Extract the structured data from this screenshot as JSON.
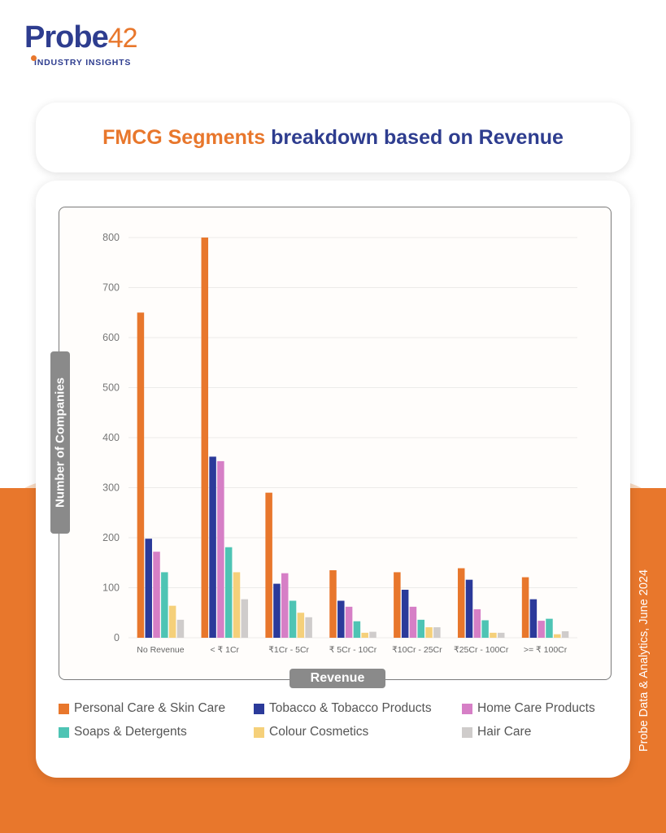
{
  "logo": {
    "name_main": "robe",
    "name_p": "P",
    "name_num": "42",
    "tagline": "INDUSTRY INSIGHTS"
  },
  "title": {
    "part1": "FMCG Segments",
    "part2": "breakdown based on Revenue"
  },
  "side_note": "Probe Data & Analytics, June 2024",
  "chart_data": {
    "type": "bar",
    "title": "FMCG Segments breakdown based on Revenue",
    "xlabel": "Revenue",
    "ylabel": "Number of Companies",
    "ylim": [
      0,
      800
    ],
    "yticks": [
      0,
      100,
      200,
      300,
      400,
      500,
      600,
      700,
      800
    ],
    "grid": true,
    "legend_position": "bottom",
    "categories": [
      "No Revenue",
      "< ₹ 1Cr",
      "₹1Cr - 5Cr",
      "₹ 5Cr - 10Cr",
      "₹10Cr - 25Cr",
      "₹25Cr - 100Cr",
      ">= ₹ 100Cr"
    ],
    "series": [
      {
        "name": "Personal Care & Skin Care",
        "color": "#e8772c",
        "values": [
          650,
          800,
          290,
          135,
          131,
          139,
          121
        ]
      },
      {
        "name": "Tobacco & Tobacco Products",
        "color": "#2b3a9a",
        "values": [
          198,
          362,
          108,
          74,
          96,
          116,
          77
        ]
      },
      {
        "name": "Home Care Products",
        "color": "#d67fc6",
        "values": [
          172,
          353,
          129,
          62,
          62,
          57,
          34
        ]
      },
      {
        "name": "Soaps & Detergents",
        "color": "#4ec4b4",
        "values": [
          131,
          181,
          74,
          33,
          36,
          35,
          38
        ]
      },
      {
        "name": "Colour Cosmetics",
        "color": "#f5d07a",
        "values": [
          64,
          131,
          50,
          10,
          21,
          10,
          7
        ]
      },
      {
        "name": "Hair Care",
        "color": "#cfcccb",
        "values": [
          36,
          77,
          41,
          12,
          21,
          10,
          13
        ]
      }
    ]
  }
}
